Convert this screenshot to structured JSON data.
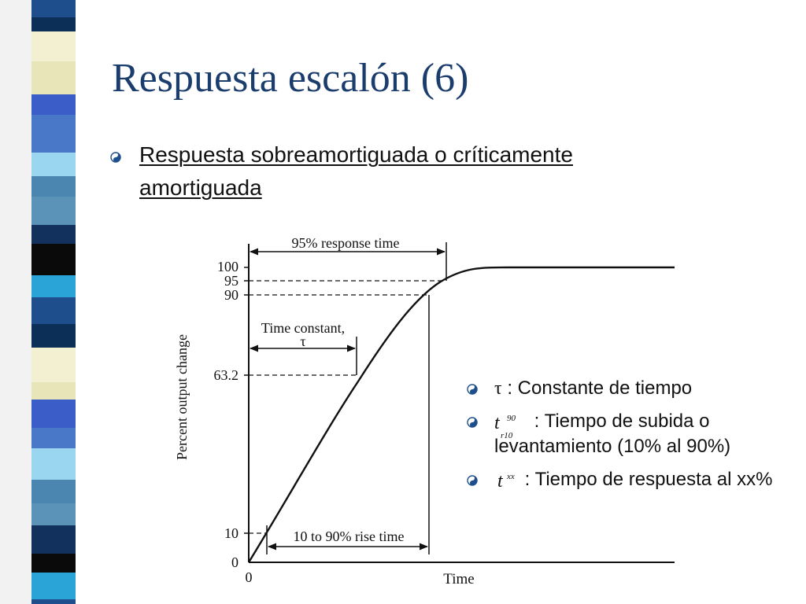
{
  "slide": {
    "title": "Respuesta escalón (6)",
    "main_bullet": "Respuesta sobreamortiguada o críticamente amortiguada",
    "definitions": [
      {
        "symbol": "τ",
        "text": ":  Constante de tiempo"
      },
      {
        "symbol": "t",
        "sup": "90",
        "sub": "r10",
        "text": ":  Tiempo de subida o levantamiento (10% al 90%)"
      },
      {
        "symbol": "t",
        "sup": "xx",
        "text": ":  Tiempo de respuesta al xx%"
      }
    ]
  },
  "diagram": {
    "y_axis_label": "Percent output change",
    "x_axis_label": "Time",
    "x_origin_label": "0",
    "y_ticks": [
      "100",
      "95",
      "90",
      "63.2",
      "10",
      "0"
    ],
    "annotations": {
      "response_time": "95% response time",
      "time_constant_line1": "Time constant,",
      "time_constant_line2": "τ",
      "rise_time": "10 to 90% rise time"
    }
  },
  "theme": {
    "title_color": "#1b3d6e",
    "stripe_colors": [
      "#1e4f8c",
      "#4a78c8",
      "#0a0a0a",
      "#e8e6b8",
      "#5b93b8",
      "#0c2f57",
      "#9ad6f0",
      "#2aa3d6",
      "#3a5dc8",
      "#12315c",
      "#f2f0d0",
      "#4a86b0"
    ]
  }
}
